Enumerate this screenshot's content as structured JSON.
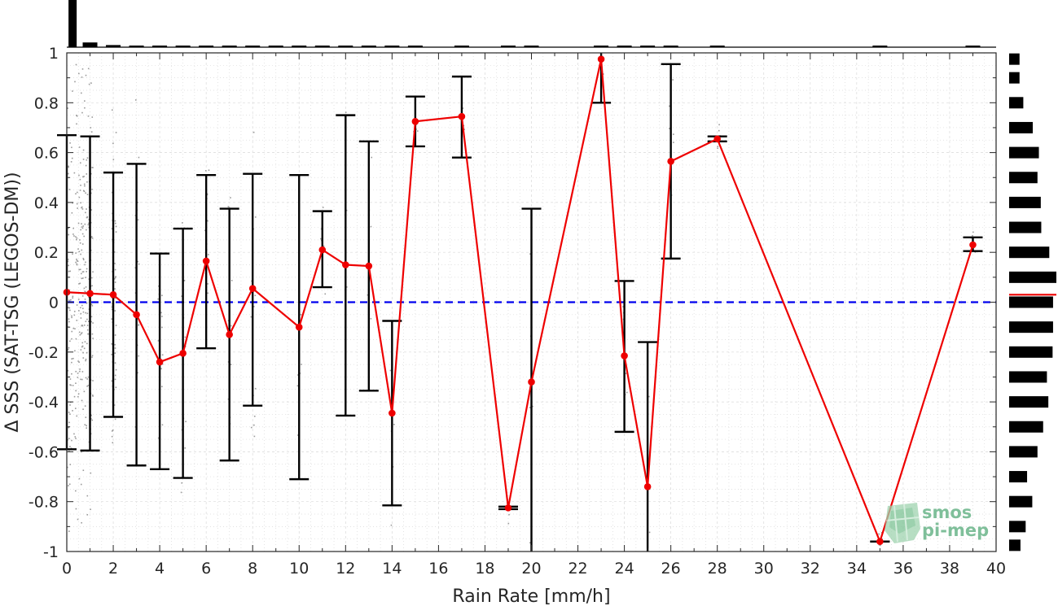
{
  "chart_data": {
    "type": "line",
    "xlabel": "Rain Rate [mm/h]",
    "ylabel": "Δ SSS (SAT-TSG (LEGOS-DM))",
    "xlim": [
      0,
      40
    ],
    "ylim": [
      -1,
      1
    ],
    "x_ticks": [
      "0",
      "2",
      "4",
      "6",
      "8",
      "10",
      "12",
      "14",
      "16",
      "18",
      "20",
      "22",
      "24",
      "26",
      "28",
      "30",
      "32",
      "34",
      "36",
      "38",
      "40"
    ],
    "y_ticks": [
      "-1",
      "-0.8",
      "-0.6",
      "-0.4",
      "-0.2",
      "0",
      "0.2",
      "0.4",
      "0.6",
      "0.8",
      "1"
    ],
    "grid": true,
    "reference_line": {
      "y": 0,
      "style": "dashed",
      "color": "#0000ee"
    },
    "series": [
      {
        "color": "#ee0000",
        "points": [
          {
            "x": 0,
            "y": 0.04,
            "lo": -0.59,
            "hi": 0.67
          },
          {
            "x": 1,
            "y": 0.035,
            "lo": -0.595,
            "hi": 0.665
          },
          {
            "x": 2,
            "y": 0.03,
            "lo": -0.46,
            "hi": 0.52
          },
          {
            "x": 3,
            "y": -0.05,
            "lo": -0.655,
            "hi": 0.555
          },
          {
            "x": 4,
            "y": -0.24,
            "lo": -0.67,
            "hi": 0.195
          },
          {
            "x": 5,
            "y": -0.205,
            "lo": -0.705,
            "hi": 0.295
          },
          {
            "x": 6,
            "y": 0.165,
            "lo": -0.185,
            "hi": 0.51
          },
          {
            "x": 7,
            "y": -0.13,
            "lo": -0.635,
            "hi": 0.375
          },
          {
            "x": 8,
            "y": 0.055,
            "lo": -0.415,
            "hi": 0.515
          },
          {
            "x": 10,
            "y": -0.1,
            "lo": -0.71,
            "hi": 0.51
          },
          {
            "x": 11,
            "y": 0.21,
            "lo": 0.06,
            "hi": 0.365
          },
          {
            "x": 12,
            "y": 0.15,
            "lo": -0.455,
            "hi": 0.75
          },
          {
            "x": 13,
            "y": 0.145,
            "lo": -0.355,
            "hi": 0.645
          },
          {
            "x": 14,
            "y": -0.445,
            "lo": -0.815,
            "hi": -0.075
          },
          {
            "x": 15,
            "y": 0.725,
            "lo": 0.625,
            "hi": 0.825
          },
          {
            "x": 17,
            "y": 0.745,
            "lo": 0.58,
            "hi": 0.905
          },
          {
            "x": 19,
            "y": -0.825,
            "lo": -0.83,
            "hi": -0.82
          },
          {
            "x": 20,
            "y": -0.32,
            "lo": -1.0,
            "hi": 0.375
          },
          {
            "x": 23,
            "y": 0.975,
            "lo": 0.8,
            "hi": 1.0
          },
          {
            "x": 24,
            "y": -0.215,
            "lo": -0.52,
            "hi": 0.085
          },
          {
            "x": 25,
            "y": -0.74,
            "lo": -1.0,
            "hi": -0.16
          },
          {
            "x": 26,
            "y": 0.565,
            "lo": 0.175,
            "hi": 0.955
          },
          {
            "x": 28,
            "y": 0.655,
            "lo": 0.645,
            "hi": 0.665
          },
          {
            "x": 35,
            "y": -0.96,
            "lo": -0.96,
            "hi": -0.96
          },
          {
            "x": 39,
            "y": 0.23,
            "lo": 0.205,
            "hi": 0.26
          }
        ]
      }
    ],
    "top_histogram": [
      {
        "x": 0.25,
        "v": 1.0
      },
      {
        "x": 1,
        "v": 0.1
      },
      {
        "x": 2,
        "v": 0.045
      },
      {
        "x": 3,
        "v": 0.03
      },
      {
        "x": 4,
        "v": 0.03
      },
      {
        "x": 5,
        "v": 0.03
      },
      {
        "x": 6,
        "v": 0.02
      },
      {
        "x": 7,
        "v": 0.02
      },
      {
        "x": 8,
        "v": 0.02
      },
      {
        "x": 9,
        "v": 0.015
      },
      {
        "x": 10,
        "v": 0.015
      },
      {
        "x": 11,
        "v": 0.015
      },
      {
        "x": 12,
        "v": 0.015
      },
      {
        "x": 13,
        "v": 0.015
      },
      {
        "x": 14,
        "v": 0.015
      },
      {
        "x": 15,
        "v": 0.015
      },
      {
        "x": 17,
        "v": 0.015
      },
      {
        "x": 19,
        "v": 0.015
      },
      {
        "x": 20,
        "v": 0.015
      },
      {
        "x": 23,
        "v": 0.015
      },
      {
        "x": 24,
        "v": 0.015
      },
      {
        "x": 25,
        "v": 0.015
      },
      {
        "x": 26,
        "v": 0.015
      },
      {
        "x": 28,
        "v": 0.015
      },
      {
        "x": 35,
        "v": 0.015
      },
      {
        "x": 39,
        "v": 0.015
      }
    ],
    "right_histogram": [
      {
        "y": 0.975,
        "v": 0.22
      },
      {
        "y": 0.9,
        "v": 0.22
      },
      {
        "y": 0.8,
        "v": 0.3
      },
      {
        "y": 0.7,
        "v": 0.5
      },
      {
        "y": 0.6,
        "v": 0.63
      },
      {
        "y": 0.5,
        "v": 0.6
      },
      {
        "y": 0.4,
        "v": 0.67
      },
      {
        "y": 0.3,
        "v": 0.68
      },
      {
        "y": 0.2,
        "v": 0.85
      },
      {
        "y": 0.1,
        "v": 1.0
      },
      {
        "y": 0.0,
        "v": 0.93
      },
      {
        "y": -0.1,
        "v": 0.93
      },
      {
        "y": -0.2,
        "v": 0.92
      },
      {
        "y": -0.3,
        "v": 0.8
      },
      {
        "y": -0.4,
        "v": 0.83
      },
      {
        "y": -0.5,
        "v": 0.72
      },
      {
        "y": -0.6,
        "v": 0.6
      },
      {
        "y": -0.7,
        "v": 0.38
      },
      {
        "y": -0.8,
        "v": 0.49
      },
      {
        "y": -0.9,
        "v": 0.35
      },
      {
        "y": -0.975,
        "v": 0.24
      }
    ],
    "right_histogram_mean_line": {
      "y": 0.03,
      "color": "#ee0000"
    }
  },
  "logo": {
    "line1": "smos",
    "line2": "pi-mep"
  }
}
